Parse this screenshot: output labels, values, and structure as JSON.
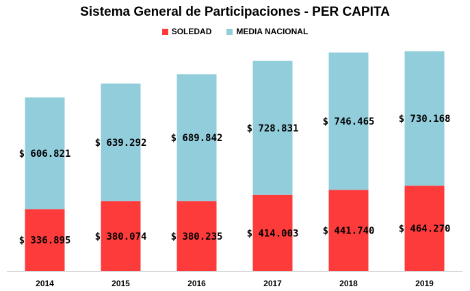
{
  "chart_data": {
    "type": "bar",
    "stacked": true,
    "title": "Sistema General de Participaciones - PER CAPITA",
    "categories": [
      "2014",
      "2015",
      "2016",
      "2017",
      "2018",
      "2019"
    ],
    "series": [
      {
        "name": "SOLEDAD",
        "color": "#fe3b3b",
        "values": [
          336895,
          380074,
          380235,
          414003,
          441740,
          464270
        ],
        "labels": [
          "$ 336.895",
          "$ 380.074",
          "$ 380.235",
          "$ 414.003",
          "$ 441.740",
          "$ 464.270"
        ]
      },
      {
        "name": "MEDIA NACIONAL",
        "color": "#92cddc",
        "values": [
          606821,
          639292,
          689842,
          728831,
          746465,
          730168
        ],
        "labels": [
          "$ 606.821",
          "$ 639.292",
          "$ 689.842",
          "$ 728.831",
          "$ 746.465",
          "$ 730.168"
        ]
      }
    ],
    "ylim": [
      0,
      1250000
    ],
    "legend_position": "top-center",
    "grid": false
  }
}
